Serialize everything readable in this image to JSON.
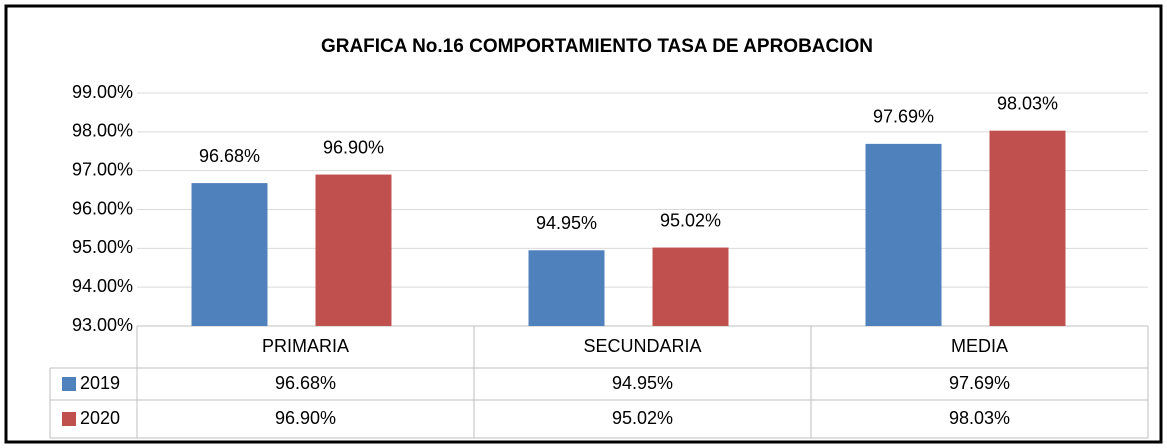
{
  "chart_data": {
    "type": "bar",
    "title": "GRAFICA No.16  COMPORTAMIENTO TASA DE APROBACION",
    "categories": [
      "PRIMARIA",
      "SECUNDARIA",
      "MEDIA"
    ],
    "series": [
      {
        "name": "2019",
        "color": "#4f81bd",
        "values": [
          96.68,
          94.95,
          97.69
        ],
        "value_labels": [
          "96.68%",
          "94.95%",
          "97.69%"
        ]
      },
      {
        "name": "2020",
        "color": "#c0504d",
        "values": [
          96.9,
          95.02,
          98.03
        ],
        "value_labels": [
          "96.90%",
          "95.02%",
          "98.03%"
        ]
      }
    ],
    "ylim": [
      93,
      99
    ],
    "yticks": [
      {
        "value": 93,
        "label": "93.00%"
      },
      {
        "value": 94,
        "label": "94.00%"
      },
      {
        "value": 95,
        "label": "95.00%"
      },
      {
        "value": 96,
        "label": "96.00%"
      },
      {
        "value": 97,
        "label": "97.00%"
      },
      {
        "value": 98,
        "label": "98.00%"
      },
      {
        "value": 99,
        "label": "99.00%"
      }
    ],
    "grid": true,
    "data_table": true
  }
}
